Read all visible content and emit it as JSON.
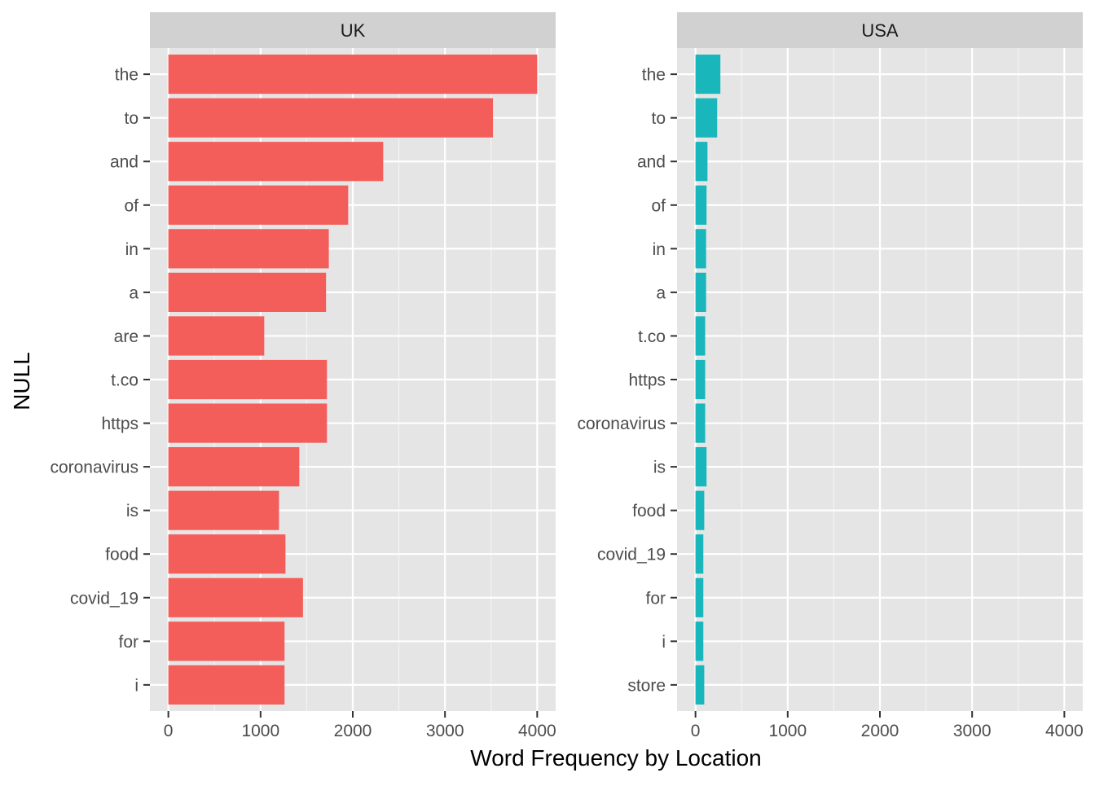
{
  "chart_data": {
    "type": "bar",
    "orientation": "horizontal",
    "facet_layout": "side-by-side, independent y categories, shared x scale",
    "xlabel": "Word Frequency by Location",
    "ylabel": "NULL",
    "xlim": [
      0,
      4000
    ],
    "x_ticks": [
      0,
      1000,
      2000,
      3000,
      4000
    ],
    "grid": true,
    "legend": "none",
    "panel_background": "#E5E5E5",
    "strip_background": "#D1D1D1",
    "panels": [
      {
        "title": "UK",
        "color": "#F35E5A",
        "categories": [
          "the",
          "to",
          "and",
          "of",
          "in",
          "a",
          "are",
          "t.co",
          "https",
          "coronavirus",
          "is",
          "food",
          "covid_19",
          "for",
          "i"
        ],
        "values": [
          4000,
          3520,
          2330,
          1950,
          1740,
          1710,
          1040,
          1720,
          1720,
          1420,
          1200,
          1270,
          1460,
          1260,
          1260
        ]
      },
      {
        "title": "USA",
        "color": "#19B6BB",
        "categories": [
          "the",
          "to",
          "and",
          "of",
          "in",
          "a",
          "t.co",
          "https",
          "coronavirus",
          "is",
          "food",
          "covid_19",
          "for",
          "i",
          "store"
        ],
        "values": [
          270,
          235,
          130,
          120,
          115,
          115,
          105,
          105,
          105,
          120,
          95,
          85,
          85,
          85,
          95
        ]
      }
    ]
  }
}
